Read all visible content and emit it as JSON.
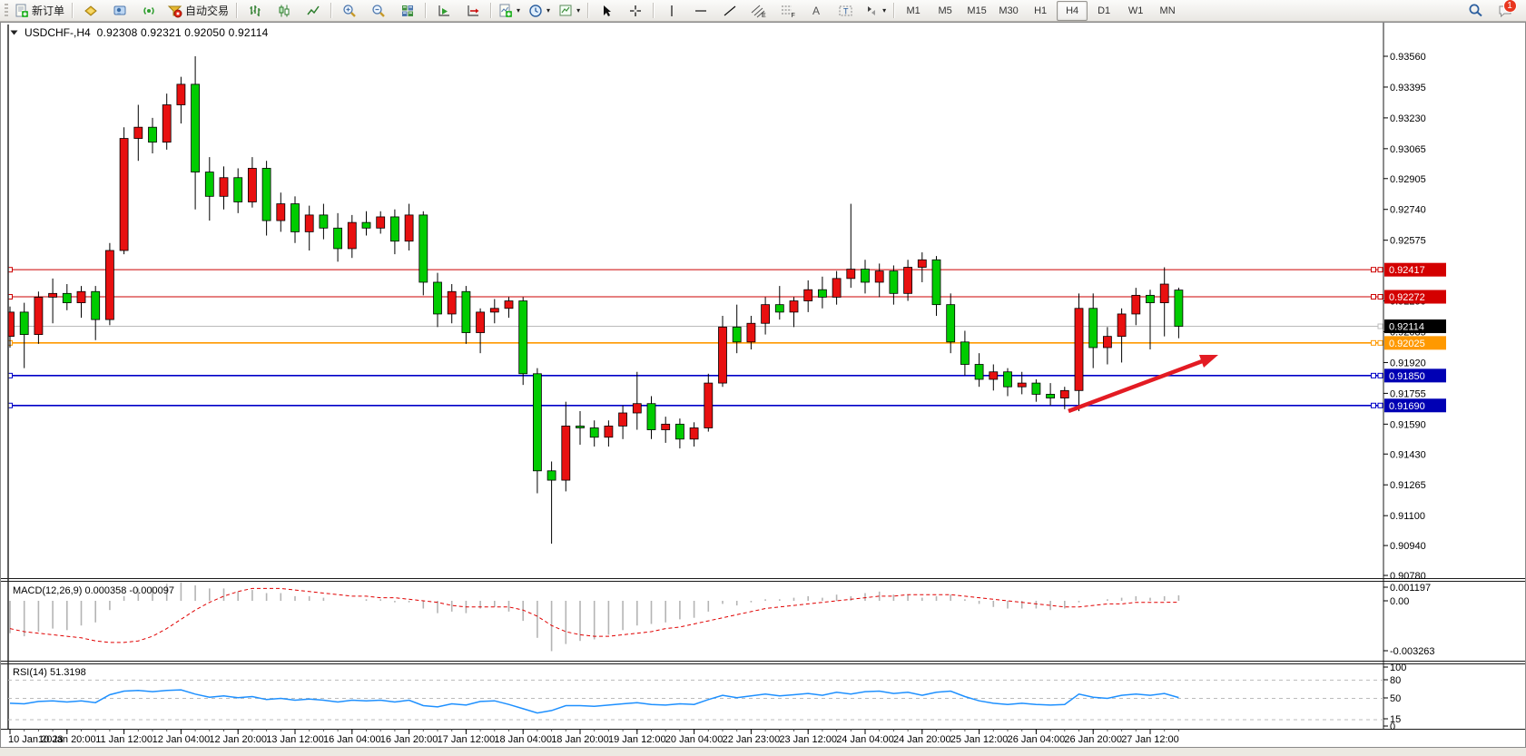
{
  "toolbar": {
    "new_order_label": "新订单",
    "autotrade_label": "自动交易",
    "tool_letters": {
      "channel": "E",
      "fibo": "F",
      "text": "A",
      "label": "T"
    },
    "timeframes": [
      "M1",
      "M5",
      "M15",
      "M30",
      "H1",
      "H4",
      "D1",
      "W1",
      "MN"
    ],
    "active_timeframe": "H4",
    "notification_badge": "1"
  },
  "chart": {
    "symbol": "USDCHF-,H4",
    "ohlc": "0.92308 0.92321 0.92050 0.92114"
  },
  "indicators": {
    "macd": {
      "label": "MACD(12,26,9) 0.000358 -0.000097",
      "scale_labels": [
        "0.001197",
        "0.00",
        "-0.003263"
      ]
    },
    "rsi": {
      "label": "RSI(14) 51.3198",
      "scale_labels": [
        "100",
        "80",
        "50",
        "15",
        "0"
      ]
    }
  },
  "chart_data": {
    "type": "candlestick",
    "symbol": "USDCHF",
    "timeframe": "H4",
    "title": "USDCHF-,H4  0.92308 0.92321 0.92050 0.92114",
    "current_bar": {
      "open": 0.92308,
      "high": 0.92321,
      "low": 0.9205,
      "close": 0.92114
    },
    "bull_color": "#e81010",
    "bear_color": "#00cc00",
    "ylim": [
      0.9076,
      0.9366
    ],
    "y_ticks": [
      "0.93560",
      "0.93395",
      "0.93230",
      "0.93065",
      "0.92905",
      "0.92740",
      "0.92575",
      "0.92250",
      "0.92085",
      "0.91920",
      "0.91755",
      "0.91590",
      "0.91430",
      "0.91265",
      "0.91100",
      "0.90940",
      "0.90780"
    ],
    "price_lines": [
      {
        "price": 0.92417,
        "label": "0.92417",
        "color": "#cc0000",
        "width": 1,
        "handles": true,
        "tag_bg": "#d40000",
        "tag_fg": "#ffffff"
      },
      {
        "price": 0.92272,
        "label": "0.92272",
        "color": "#cc0000",
        "width": 1,
        "handles": true,
        "tag_bg": "#d40000",
        "tag_fg": "#ffffff"
      },
      {
        "price": 0.92114,
        "label": "0.92114",
        "color": "#bbbbbb",
        "width": 1,
        "handles": false,
        "tag_bg": "#000000",
        "tag_fg": "#ffffff"
      },
      {
        "price": 0.92025,
        "label": "0.92025",
        "color": "#ff9900",
        "width": 1.6,
        "handles": true,
        "tag_bg": "#ff9900",
        "tag_fg": "#ffffff"
      },
      {
        "price": 0.9185,
        "label": "0.91850",
        "color": "#0000c8",
        "width": 1.6,
        "handles": true,
        "tag_bg": "#0000b4",
        "tag_fg": "#ffffff"
      },
      {
        "price": 0.9169,
        "label": "0.91690",
        "color": "#0000c8",
        "width": 1.6,
        "handles": true,
        "tag_bg": "#0000b4",
        "tag_fg": "#ffffff"
      }
    ],
    "x_labels": [
      {
        "i": 0,
        "text": "10 Jan 2023"
      },
      {
        "i": 4,
        "text": "10 Jan 20:00"
      },
      {
        "i": 8,
        "text": "11 Jan 12:00"
      },
      {
        "i": 12,
        "text": "12 Jan 04:00"
      },
      {
        "i": 16,
        "text": "12 Jan 20:00"
      },
      {
        "i": 20,
        "text": "13 Jan 12:00"
      },
      {
        "i": 24,
        "text": "16 Jan 04:00"
      },
      {
        "i": 28,
        "text": "16 Jan 20:00"
      },
      {
        "i": 32,
        "text": "17 Jan 12:00"
      },
      {
        "i": 36,
        "text": "18 Jan 04:00"
      },
      {
        "i": 40,
        "text": "18 Jan 20:00"
      },
      {
        "i": 44,
        "text": "19 Jan 12:00"
      },
      {
        "i": 48,
        "text": "20 Jan 04:00"
      },
      {
        "i": 52,
        "text": "22 Jan 23:00"
      },
      {
        "i": 56,
        "text": "23 Jan 12:00"
      },
      {
        "i": 60,
        "text": "24 Jan 04:00"
      },
      {
        "i": 64,
        "text": "24 Jan 20:00"
      },
      {
        "i": 68,
        "text": "25 Jan 12:00"
      },
      {
        "i": 72,
        "text": "26 Jan 04:00"
      },
      {
        "i": 76,
        "text": "26 Jan 20:00"
      },
      {
        "i": 80,
        "text": "27 Jan 12:00"
      }
    ],
    "candles": [
      [
        0.9206,
        0.9222,
        0.92,
        0.9219
      ],
      [
        0.9219,
        0.9224,
        0.9189,
        0.9207
      ],
      [
        0.9207,
        0.923,
        0.9202,
        0.9227
      ],
      [
        0.9227,
        0.9237,
        0.9213,
        0.9229
      ],
      [
        0.9229,
        0.9234,
        0.922,
        0.9224
      ],
      [
        0.9224,
        0.9233,
        0.9216,
        0.923
      ],
      [
        0.923,
        0.9233,
        0.9204,
        0.9215
      ],
      [
        0.9215,
        0.9256,
        0.9212,
        0.9252
      ],
      [
        0.9252,
        0.9318,
        0.925,
        0.9312
      ],
      [
        0.9312,
        0.933,
        0.93,
        0.9318
      ],
      [
        0.9318,
        0.9323,
        0.9304,
        0.931
      ],
      [
        0.931,
        0.9336,
        0.9306,
        0.933
      ],
      [
        0.933,
        0.9345,
        0.932,
        0.9341
      ],
      [
        0.9341,
        0.9356,
        0.9274,
        0.9294
      ],
      [
        0.9294,
        0.9302,
        0.9268,
        0.9281
      ],
      [
        0.9281,
        0.9297,
        0.9274,
        0.9291
      ],
      [
        0.9291,
        0.9296,
        0.9272,
        0.9278
      ],
      [
        0.9278,
        0.9302,
        0.9275,
        0.9296
      ],
      [
        0.9296,
        0.93,
        0.926,
        0.9268
      ],
      [
        0.9268,
        0.9283,
        0.9262,
        0.9277
      ],
      [
        0.9277,
        0.9281,
        0.9256,
        0.9262
      ],
      [
        0.9262,
        0.9276,
        0.9252,
        0.9271
      ],
      [
        0.9271,
        0.9277,
        0.9258,
        0.9264
      ],
      [
        0.9264,
        0.9272,
        0.9246,
        0.9253
      ],
      [
        0.9253,
        0.9271,
        0.9248,
        0.9267
      ],
      [
        0.9267,
        0.9273,
        0.926,
        0.9264
      ],
      [
        0.9264,
        0.9273,
        0.9261,
        0.927
      ],
      [
        0.927,
        0.9274,
        0.925,
        0.9257
      ],
      [
        0.9257,
        0.9277,
        0.9252,
        0.9271
      ],
      [
        0.9271,
        0.9273,
        0.9228,
        0.9235
      ],
      [
        0.9235,
        0.924,
        0.9211,
        0.9218
      ],
      [
        0.9218,
        0.9234,
        0.9213,
        0.923
      ],
      [
        0.923,
        0.9233,
        0.9202,
        0.9208
      ],
      [
        0.9208,
        0.9221,
        0.9197,
        0.9219
      ],
      [
        0.9219,
        0.9226,
        0.9213,
        0.9221
      ],
      [
        0.9221,
        0.9227,
        0.9216,
        0.9225
      ],
      [
        0.9225,
        0.9227,
        0.918,
        0.9186
      ],
      [
        0.9186,
        0.9189,
        0.9122,
        0.9134
      ],
      [
        0.9134,
        0.9139,
        0.9095,
        0.9129
      ],
      [
        0.9129,
        0.9171,
        0.9123,
        0.9158
      ],
      [
        0.9158,
        0.9166,
        0.9148,
        0.9157
      ],
      [
        0.9157,
        0.9161,
        0.9147,
        0.9152
      ],
      [
        0.9152,
        0.9161,
        0.9147,
        0.9158
      ],
      [
        0.9158,
        0.9169,
        0.9151,
        0.9165
      ],
      [
        0.9165,
        0.9187,
        0.9156,
        0.917
      ],
      [
        0.917,
        0.9174,
        0.9151,
        0.9156
      ],
      [
        0.9156,
        0.9163,
        0.9149,
        0.9159
      ],
      [
        0.9159,
        0.9162,
        0.9146,
        0.9151
      ],
      [
        0.9151,
        0.916,
        0.9147,
        0.9157
      ],
      [
        0.9157,
        0.9186,
        0.9155,
        0.9181
      ],
      [
        0.9181,
        0.9217,
        0.9179,
        0.9211
      ],
      [
        0.9211,
        0.9223,
        0.9197,
        0.9203
      ],
      [
        0.9203,
        0.9217,
        0.9199,
        0.9213
      ],
      [
        0.9213,
        0.9227,
        0.9207,
        0.9223
      ],
      [
        0.9223,
        0.9233,
        0.9215,
        0.9219
      ],
      [
        0.9219,
        0.9227,
        0.9211,
        0.9225
      ],
      [
        0.9225,
        0.9236,
        0.9219,
        0.9231
      ],
      [
        0.9231,
        0.9238,
        0.9221,
        0.9227
      ],
      [
        0.9227,
        0.9241,
        0.9223,
        0.9237
      ],
      [
        0.9237,
        0.9277,
        0.9232,
        0.9242
      ],
      [
        0.9242,
        0.9247,
        0.9229,
        0.9235
      ],
      [
        0.9235,
        0.9245,
        0.9227,
        0.9241
      ],
      [
        0.9241,
        0.9244,
        0.9223,
        0.9229
      ],
      [
        0.9229,
        0.9247,
        0.9225,
        0.9243
      ],
      [
        0.9243,
        0.9251,
        0.9235,
        0.9247
      ],
      [
        0.9247,
        0.9249,
        0.9217,
        0.9223
      ],
      [
        0.9223,
        0.9229,
        0.9197,
        0.9203
      ],
      [
        0.9203,
        0.9209,
        0.9185,
        0.9191
      ],
      [
        0.9191,
        0.9197,
        0.9179,
        0.9183
      ],
      [
        0.9183,
        0.9191,
        0.9177,
        0.9187
      ],
      [
        0.9187,
        0.9189,
        0.9174,
        0.9179
      ],
      [
        0.9179,
        0.9187,
        0.9175,
        0.9181
      ],
      [
        0.9181,
        0.9183,
        0.9171,
        0.9175
      ],
      [
        0.9175,
        0.9181,
        0.9169,
        0.9173
      ],
      [
        0.9173,
        0.9179,
        0.9167,
        0.9177
      ],
      [
        0.9177,
        0.9229,
        0.9166,
        0.9221
      ],
      [
        0.9221,
        0.9229,
        0.9189,
        0.92
      ],
      [
        0.92,
        0.9211,
        0.9191,
        0.9206
      ],
      [
        0.9206,
        0.9221,
        0.9192,
        0.9218
      ],
      [
        0.9218,
        0.9232,
        0.9212,
        0.9228
      ],
      [
        0.9228,
        0.9231,
        0.9199,
        0.9224
      ],
      [
        0.9224,
        0.9243,
        0.9206,
        0.9234
      ],
      [
        0.92308,
        0.92321,
        0.9205,
        0.92114
      ]
    ],
    "macd": {
      "params": "12,26,9",
      "current_main": 0.000358,
      "current_signal": -9.7e-05,
      "histogram": [
        -0.0021,
        -0.0023,
        -0.002,
        -0.0018,
        -0.0019,
        -0.0016,
        -0.0014,
        -0.0006,
        0.0003,
        0.0008,
        0.0009,
        0.0011,
        0.0012,
        0.001,
        0.0008,
        0.0008,
        0.0006,
        0.0007,
        0.0005,
        0.0005,
        0.0003,
        0.0003,
        0.0002,
        0.0,
        0.0,
        0.0001,
        0.0001,
        -0.0001,
        -0.0001,
        -0.0005,
        -0.0008,
        -0.0007,
        -0.0008,
        -0.0005,
        -0.0004,
        -0.0007,
        -0.0013,
        -0.0024,
        -0.003263,
        -0.0028,
        -0.0026,
        -0.0025,
        -0.0022,
        -0.0019,
        -0.0016,
        -0.0015,
        -0.0014,
        -0.0012,
        -0.0011,
        -0.0007,
        -0.0002,
        -0.0003,
        -0.0001,
        0.0001,
        0.0001,
        0.0002,
        0.0003,
        0.0002,
        0.0004,
        0.0003,
        0.0005,
        0.0006,
        0.0004,
        0.0004,
        0.0002,
        0.0003,
        0.0004,
        0.0001,
        -0.0002,
        -0.0004,
        -0.0005,
        -0.0005,
        -0.0005,
        -0.0006,
        -0.0005,
        -0.0001,
        0.0,
        0.0001,
        0.0002,
        0.0003,
        0.0002,
        0.0003,
        0.000358
      ],
      "signal": [
        -0.0018,
        -0.002,
        -0.0021,
        -0.0022,
        -0.0023,
        -0.0024,
        -0.0026,
        -0.0027,
        -0.0027,
        -0.0026,
        -0.0023,
        -0.0018,
        -0.0012,
        -0.0006,
        -0.0001,
        0.0003,
        0.0006,
        0.0008,
        0.0008,
        0.0008,
        0.0007,
        0.0006,
        0.0005,
        0.0004,
        0.0003,
        0.0003,
        0.0002,
        0.0002,
        0.0001,
        0.0,
        -0.0001,
        -0.0003,
        -0.0004,
        -0.0004,
        -0.0004,
        -0.0004,
        -0.0006,
        -0.001,
        -0.0016,
        -0.002,
        -0.0022,
        -0.0023,
        -0.0023,
        -0.0022,
        -0.0021,
        -0.002,
        -0.0018,
        -0.0017,
        -0.0015,
        -0.0013,
        -0.0011,
        -0.0009,
        -0.0007,
        -0.0005,
        -0.0004,
        -0.0003,
        -0.0002,
        -0.0001,
        0.0,
        0.0001,
        0.0002,
        0.0003,
        0.0003,
        0.0004,
        0.0004,
        0.0004,
        0.0004,
        0.0003,
        0.0002,
        0.0001,
        0.0,
        -0.0001,
        -0.0002,
        -0.0003,
        -0.0004,
        -0.0004,
        -0.0003,
        -0.0002,
        -0.0002,
        -0.0001,
        -0.0001,
        -0.0001,
        -9.7e-05
      ]
    },
    "rsi": {
      "period": 14,
      "current": 51.3198,
      "levels": [
        80,
        50,
        15
      ],
      "values": [
        42,
        41,
        45,
        46,
        44,
        46,
        43,
        56,
        62,
        63,
        61,
        63,
        64,
        57,
        52,
        54,
        51,
        53,
        48,
        50,
        47,
        49,
        47,
        44,
        47,
        46,
        47,
        44,
        47,
        38,
        36,
        41,
        39,
        45,
        46,
        40,
        33,
        26,
        30,
        38,
        38,
        37,
        39,
        41,
        43,
        40,
        39,
        41,
        40,
        48,
        55,
        51,
        54,
        57,
        54,
        56,
        58,
        55,
        60,
        57,
        61,
        62,
        58,
        60,
        55,
        60,
        62,
        53,
        46,
        42,
        40,
        42,
        40,
        39,
        40,
        57,
        52,
        50,
        55,
        57,
        55,
        58,
        51.3
      ]
    },
    "arrow_annotation": {
      "from": [
        1176,
        428
      ],
      "to": [
        1326,
        372
      ],
      "tip": [
        1341,
        366
      ],
      "color": "#e31b23"
    }
  }
}
